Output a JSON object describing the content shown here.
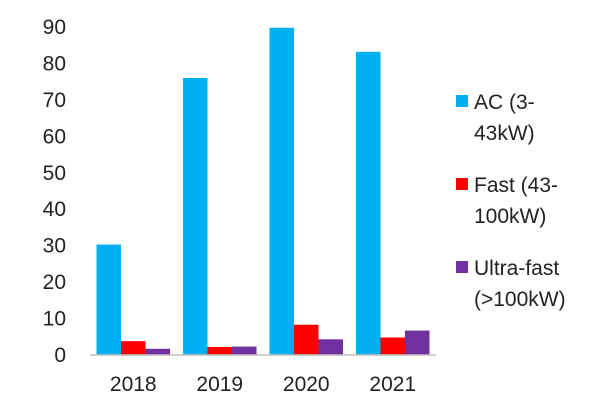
{
  "chart_data": {
    "type": "bar",
    "categories": [
      "2018",
      "2019",
      "2020",
      "2021"
    ],
    "series": [
      {
        "name": "AC (3-43kW)",
        "legend_lines": [
          "AC (3-",
          "43kW)"
        ],
        "values": [
          30.3,
          76,
          89.8,
          83.2
        ],
        "color": "#00b0f0"
      },
      {
        "name": "Fast (43-100kW)",
        "legend_lines": [
          "Fast (43-",
          "100kW)"
        ],
        "values": [
          3.8,
          2.2,
          8.3,
          4.8
        ],
        "color": "#ff0000"
      },
      {
        "name": "Ultra-fast (>100kW)",
        "legend_lines": [
          "Ultra-fast",
          "(>100kW)"
        ],
        "values": [
          1.7,
          2.3,
          4.3,
          6.7
        ],
        "color": "#7030a0"
      }
    ],
    "yticks": [
      "0",
      "10",
      "20",
      "30",
      "40",
      "50",
      "60",
      "70",
      "80",
      "90"
    ],
    "ylim": [
      0,
      90
    ],
    "grid": false,
    "legend_position": "right"
  }
}
